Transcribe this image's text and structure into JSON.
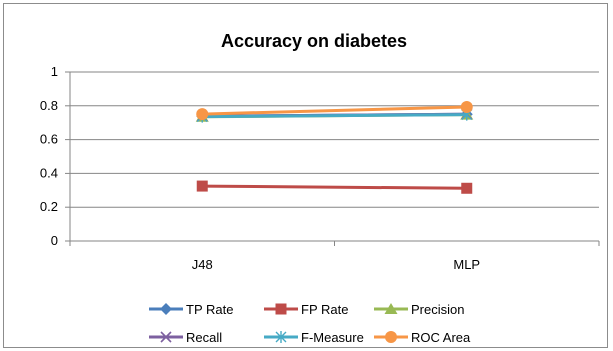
{
  "chart_data": {
    "type": "line",
    "title": "Accuracy on diabetes",
    "xlabel": "",
    "ylabel": "",
    "categories": [
      "J48",
      "MLP"
    ],
    "ylim": [
      0,
      1
    ],
    "yticks": [
      "0",
      "0.2",
      "0.4",
      "0.6",
      "0.8",
      "1"
    ],
    "grid": true,
    "legend_position": "bottom",
    "series": [
      {
        "name": "TP Rate",
        "values": [
          0.738,
          0.75
        ],
        "color": "#4a7ebb",
        "marker": "diamond"
      },
      {
        "name": "FP Rate",
        "values": [
          0.325,
          0.312
        ],
        "color": "#be4b48",
        "marker": "square"
      },
      {
        "name": "Precision",
        "values": [
          0.735,
          0.748
        ],
        "color": "#98b954",
        "marker": "triangle"
      },
      {
        "name": "Recall",
        "values": [
          0.738,
          0.75
        ],
        "color": "#7d60a0",
        "marker": "x"
      },
      {
        "name": "F-Measure",
        "values": [
          0.736,
          0.748
        ],
        "color": "#46aac5",
        "marker": "asterisk"
      },
      {
        "name": "ROC Area",
        "values": [
          0.751,
          0.793
        ],
        "color": "#f79646",
        "marker": "circle"
      }
    ]
  }
}
